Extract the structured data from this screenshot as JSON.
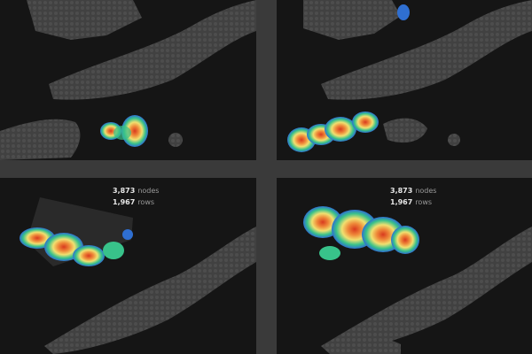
{
  "stats": {
    "nodes_value": "3,873",
    "nodes_label": "nodes",
    "rows_value": "1,967",
    "rows_label": "rows"
  },
  "colors": {
    "background": "#151515",
    "divider": "#3a3a3a",
    "landmass": "#4a4a4a",
    "heat_low": "#2f6fd1",
    "heat_mid": "#38c28a",
    "heat_high": "#f0e070",
    "heat_peak": "#d83a1e"
  }
}
